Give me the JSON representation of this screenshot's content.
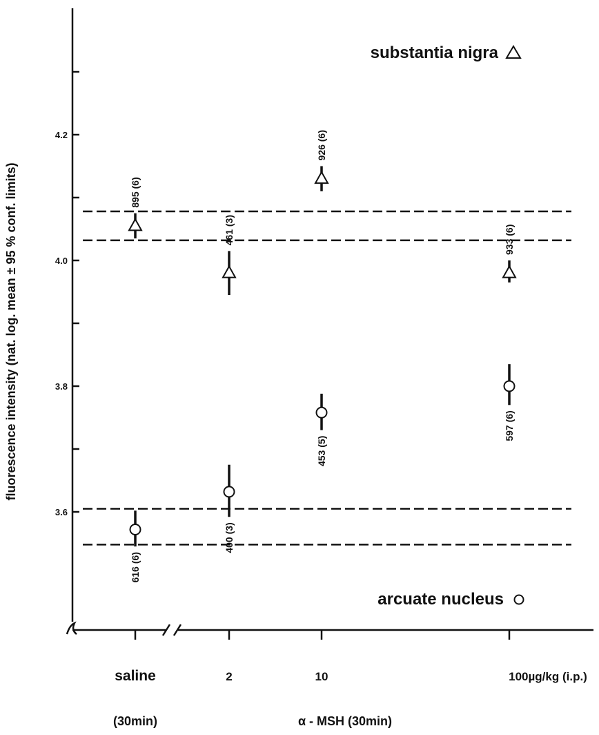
{
  "chart_data": {
    "type": "scatter",
    "ylabel": "fluorescence intensity (nat. log. mean ± 95 % conf. limits)",
    "ylim": [
      3.4,
      4.38
    ],
    "yticks": [
      {
        "value": 3.6,
        "label": "3.6"
      },
      {
        "value": 3.8,
        "label": "3.8"
      },
      {
        "value": 4.0,
        "label": "4.0"
      },
      {
        "value": 4.2,
        "label": "4.2"
      }
    ],
    "yminor_ticks": [
      3.7,
      3.9,
      4.1,
      4.3
    ],
    "categories": [
      {
        "label": "saline",
        "sublabel": "(30min)"
      },
      {
        "label": "2",
        "sublabel": ""
      },
      {
        "label": "10",
        "sublabel": ""
      },
      {
        "label": "100µg/kg (i.p.)",
        "sublabel": ""
      }
    ],
    "xlabel": "α - MSH (30min)",
    "series": [
      {
        "name": "substantia nigra",
        "marker": "triangle",
        "points": [
          {
            "category": "saline",
            "y": 4.055,
            "lower": 4.035,
            "upper": 4.075,
            "n_label": "895 (6)",
            "label_side": "above"
          },
          {
            "category": "2",
            "y": 3.98,
            "lower": 3.945,
            "upper": 4.015,
            "n_label": "461 (3)",
            "label_side": "above"
          },
          {
            "category": "10",
            "y": 4.13,
            "lower": 4.11,
            "upper": 4.15,
            "n_label": "926 (6)",
            "label_side": "above"
          },
          {
            "category": "100µg/kg (i.p.)",
            "y": 3.98,
            "lower": 3.965,
            "upper": 4.0,
            "n_label": "933 (6)",
            "label_side": "above"
          }
        ],
        "reference_band": [
          4.032,
          4.078
        ]
      },
      {
        "name": "arcuate nucleus",
        "marker": "circle",
        "points": [
          {
            "category": "saline",
            "y": 3.572,
            "lower": 3.545,
            "upper": 3.602,
            "n_label": "616 (6)",
            "label_side": "below"
          },
          {
            "category": "2",
            "y": 3.632,
            "lower": 3.592,
            "upper": 3.675,
            "n_label": "400 (3)",
            "label_side": "below"
          },
          {
            "category": "10",
            "y": 3.758,
            "lower": 3.73,
            "upper": 3.788,
            "n_label": "453 (5)",
            "label_side": "below"
          },
          {
            "category": "100µg/kg (i.p.)",
            "y": 3.8,
            "lower": 3.77,
            "upper": 3.835,
            "n_label": "597 (6)",
            "label_side": "below"
          }
        ],
        "reference_band": [
          3.548,
          3.605
        ]
      }
    ],
    "legend": [
      {
        "text": "substantia nigra",
        "marker": "triangle",
        "position": "top-right"
      },
      {
        "text": "arcuate nucleus",
        "marker": "circle",
        "position": "bottom-right"
      }
    ],
    "grid": false
  }
}
